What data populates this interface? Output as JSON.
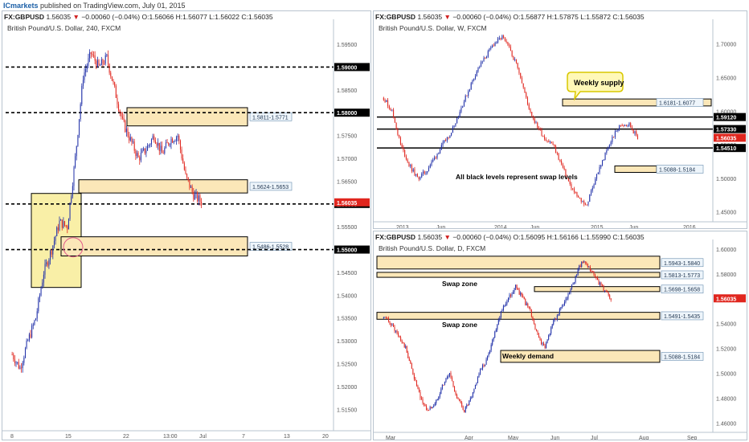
{
  "header": {
    "brand": "ICmarkets",
    "published": "published on TradingView.com, July 01, 2015"
  },
  "colors": {
    "up": "#1f2fa8",
    "down": "#e0261e",
    "zone_fill": "#fbe7b8",
    "zone_yellow": "#f7ea8a",
    "current_price_tag": "#e0261e",
    "level": "#000000"
  },
  "panels": [
    {
      "id": "h4",
      "symbol_line": {
        "symbol": "FX:GBPUSD",
        "last": "1.56035",
        "arrow": "▼",
        "change": "−0.00060 (−0.04%)",
        "o": "O:1.56066",
        "h": "H:1.56077",
        "l": "L:1.56022",
        "c": "C:1.56035"
      },
      "title": "British Pound/U.S. Dollar, 240, FXCM"
    },
    {
      "id": "w",
      "symbol_line": {
        "symbol": "FX:GBPUSD",
        "last": "1.56035",
        "arrow": "▼",
        "change": "−0.00060 (−0.04%)",
        "o": "O:1.56877",
        "h": "H:1.57875",
        "l": "L:1.55872",
        "c": "C:1.56035"
      },
      "title": "British Pound/U.S. Dollar, W, FXCM",
      "annotations": {
        "callout": "Weekly supply",
        "note": "All black levels represent swap levels"
      }
    },
    {
      "id": "d",
      "symbol_line": {
        "symbol": "FX:GBPUSD",
        "last": "1.56035",
        "arrow": "▼",
        "change": "−0.00060 (−0.04%)",
        "o": "O:1.56095",
        "h": "H:1.56166",
        "l": "L:1.55990",
        "c": "C:1.56035"
      },
      "title": "British Pound/U.S. Dollar, D, FXCM",
      "annotations": {
        "swap_zone_1": "Swap zone",
        "swap_zone_2": "Swap zone",
        "weekly_demand": "Weekly demand"
      }
    }
  ],
  "chart_data": [
    {
      "type": "candlestick",
      "title": "British Pound/U.S. Dollar, 240, FXCM",
      "ylim": [
        1.511,
        1.598
      ],
      "y_ticks": [
        "1.59500",
        "1.59000",
        "1.58500",
        "1.58000",
        "1.57500",
        "1.57000",
        "1.56500",
        "1.56000",
        "1.55500",
        "1.55000",
        "1.54500",
        "1.54000",
        "1.53500",
        "1.53000",
        "1.52500",
        "1.52000",
        "1.51500"
      ],
      "x_ticks": [
        "8",
        "15",
        "22",
        "13:00",
        "Jul",
        "7",
        "13",
        "20"
      ],
      "price_path": [
        1.527,
        1.524,
        1.53,
        1.535,
        1.545,
        1.55,
        1.556,
        1.555,
        1.57,
        1.588,
        1.593,
        1.59,
        1.592,
        1.585,
        1.578,
        1.574,
        1.57,
        1.572,
        1.575,
        1.571,
        1.574,
        1.575,
        1.566,
        1.562,
        1.5604
      ],
      "levels": [
        {
          "price": 1.59,
          "label": "1.59000"
        },
        {
          "price": 1.58,
          "label": "1.58000"
        },
        {
          "price": 1.56,
          "label": "1.56000"
        },
        {
          "price": 1.55,
          "label": "1.55000"
        }
      ],
      "zones": [
        {
          "low": 1.5771,
          "high": 1.5811,
          "label": "1.5811-1.5771"
        },
        {
          "low": 1.5624,
          "high": 1.5653,
          "label": "1.5624-1.5653"
        },
        {
          "low": 1.5486,
          "high": 1.5528,
          "label": "1.5486-1.5528"
        }
      ],
      "last_price": {
        "value": 1.56035,
        "label": "1.56035"
      }
    },
    {
      "type": "candlestick",
      "title": "British Pound/U.S. Dollar, W, FXCM",
      "ylim": [
        1.44,
        1.72
      ],
      "y_ticks": [
        "1.70000",
        "1.65000",
        "1.60000",
        "1.55000",
        "1.50000",
        "1.45000"
      ],
      "x_ticks": [
        "2013",
        "Jun",
        "2014",
        "Jun",
        "2015",
        "Jun",
        "2016"
      ],
      "price_path": [
        1.62,
        1.6,
        1.55,
        1.52,
        1.5,
        1.51,
        1.53,
        1.55,
        1.57,
        1.6,
        1.63,
        1.66,
        1.68,
        1.7,
        1.71,
        1.69,
        1.66,
        1.61,
        1.58,
        1.56,
        1.55,
        1.52,
        1.49,
        1.47,
        1.46,
        1.5,
        1.53,
        1.56,
        1.58,
        1.58,
        1.56
      ],
      "levels": [
        {
          "price": 1.5912,
          "label": "1.59120"
        },
        {
          "price": 1.5733,
          "label": "1.57330"
        },
        {
          "price": 1.5451,
          "label": "1.54510"
        }
      ],
      "zones": [
        {
          "low": 1.6077,
          "high": 1.6181,
          "label": "1.6181-1.6077"
        },
        {
          "low": 1.5088,
          "high": 1.5184,
          "label": "1.5088-1.5184"
        }
      ],
      "last_price": {
        "value": 1.56035,
        "label": "1.56035"
      }
    },
    {
      "type": "candlestick",
      "title": "British Pound/U.S. Dollar, D, FXCM",
      "ylim": [
        1.455,
        1.6
      ],
      "y_ticks": [
        "1.60000",
        "1.58000",
        "1.56000",
        "1.54000",
        "1.52000",
        "1.50000",
        "1.48000",
        "1.46000"
      ],
      "x_ticks": [
        "Mar",
        "Apr",
        "May",
        "Jun",
        "Jul",
        "Aug",
        "Sep"
      ],
      "price_path": [
        1.545,
        1.54,
        1.53,
        1.52,
        1.5,
        1.48,
        1.47,
        1.475,
        1.49,
        1.5,
        1.48,
        1.47,
        1.48,
        1.5,
        1.51,
        1.53,
        1.55,
        1.56,
        1.57,
        1.56,
        1.55,
        1.53,
        1.52,
        1.54,
        1.55,
        1.56,
        1.575,
        1.59,
        1.585,
        1.575,
        1.568,
        1.5604
      ],
      "zones": [
        {
          "low": 1.584,
          "high": 1.5943,
          "label": "1.5943-1.5840"
        },
        {
          "low": 1.5773,
          "high": 1.5813,
          "label": "1.5813-1.5773"
        },
        {
          "low": 1.5658,
          "high": 1.5698,
          "label": "1.5698-1.5658"
        },
        {
          "low": 1.5435,
          "high": 1.5491,
          "label": "1.5491-1.5435"
        },
        {
          "low": 1.5088,
          "high": 1.5184,
          "label": "1.5088-1.5184"
        }
      ],
      "last_price": {
        "value": 1.56035,
        "label": "1.56035"
      }
    }
  ]
}
